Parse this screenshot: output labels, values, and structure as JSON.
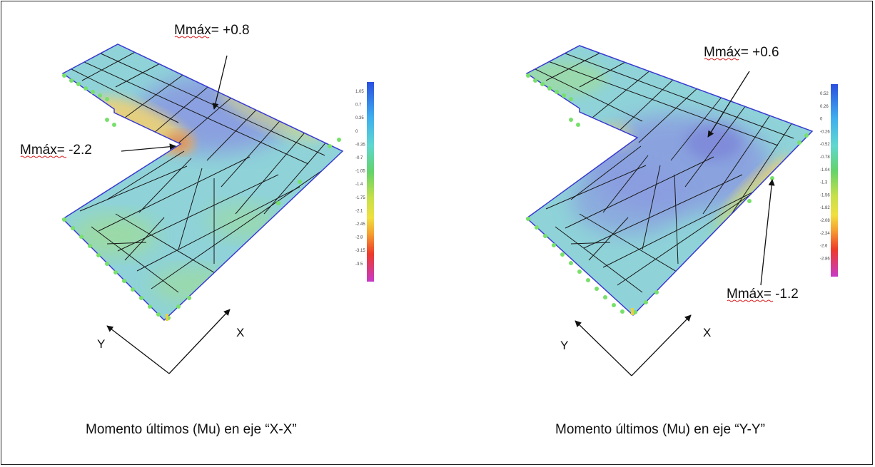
{
  "panels": [
    {
      "id": "xx",
      "annotation_max": "Mmáx= +0.8",
      "annotation_min": "Mmáx= -2.2",
      "axis_y": "Y",
      "axis_x": "X",
      "caption": "Momento últimos (Mu) en eje “X-X”",
      "legend_ticks": [
        "1.05",
        "0.7",
        "0.35",
        "0",
        "-0.35",
        "-0.7",
        "-1.05",
        "-1.4",
        "-1.75",
        "-2.1",
        "-2.45",
        "-2.8",
        "-3.15",
        "-3.5"
      ]
    },
    {
      "id": "yy",
      "annotation_max": "Mmáx= +0.6",
      "annotation_min": "Mmáx= -1.2",
      "axis_y": "Y",
      "axis_x": "X",
      "caption": "Momento últimos (Mu) en eje “Y-Y”",
      "legend_ticks": [
        "0.52",
        "0.26",
        "0",
        "-0.26",
        "-0.52",
        "-0.78",
        "-1.04",
        "-1.3",
        "-1.56",
        "-1.82",
        "-2.08",
        "-2.34",
        "-2.6",
        "-2.86"
      ]
    }
  ],
  "colors": {
    "slab_base": "#8fd3d9",
    "positive_zone": "#8a9be0",
    "negative_zone": "#e9d07a",
    "mid_zone": "#9fdc9a",
    "edge": "#3a3ad0",
    "mesh": "#1a1a1a",
    "support": "#77e06a"
  }
}
